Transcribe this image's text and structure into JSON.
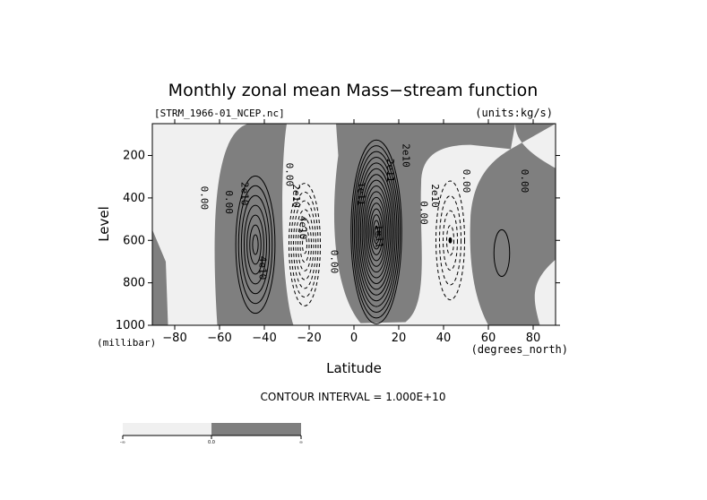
{
  "chart_data": {
    "type": "contour",
    "title": "Monthly zonal mean Mass−stream function",
    "file_label": "[STRM_1966-01_NCEP.nc]",
    "units_label": "(units:kg/s)",
    "xlabel": "Latitude",
    "ylabel": "Level",
    "x_units": "(degrees_north)",
    "y_units": "(millibar)",
    "xlim": [
      -90,
      90
    ],
    "ylim": [
      1000,
      50
    ],
    "x_ticks": [
      -80,
      -60,
      -40,
      -20,
      0,
      20,
      40,
      60,
      80
    ],
    "x_tick_labels": [
      "−80",
      "−60",
      "−40",
      "−20",
      "0",
      "20",
      "40",
      "60",
      "80"
    ],
    "y_ticks": [
      200,
      400,
      600,
      800,
      1000
    ],
    "y_tick_labels": [
      "200",
      "400",
      "600",
      "800",
      "1000"
    ],
    "contour_interval_label": "CONTOUR INTERVAL = 1.000E+10",
    "contour_interval": 10000000000.0,
    "shading": "values > 0 shaded dark gray, values < 0 light gray",
    "colors": {
      "positive": "#7f7f7f",
      "negative": "#f0f0f0",
      "lines": "#000000"
    },
    "colorbar": {
      "labels": [
        "-∞",
        "0.0",
        "∞"
      ],
      "colors": [
        "#f0f0f0",
        "#7f7f7f"
      ]
    },
    "cells": [
      {
        "name": "southern-positive-cell",
        "sign": "positive",
        "center": [
          -44,
          620
        ],
        "half_width": [
          10,
          370
        ],
        "peak": 70000000000.0,
        "outer": [
          -58,
          200
        ]
      },
      {
        "name": "southern-negative-cell",
        "sign": "negative",
        "center": [
          -22,
          620
        ],
        "half_width": [
          8,
          330
        ],
        "peak": -70000000000.0
      },
      {
        "name": "tropical-positive-cell",
        "sign": "positive",
        "center": [
          10,
          560
        ],
        "half_width": [
          12,
          460
        ],
        "peak": 200000000000.0
      },
      {
        "name": "northern-negative-cell",
        "sign": "negative",
        "center": [
          43,
          600
        ],
        "half_width": [
          8,
          350
        ],
        "peak": -40000000000.0
      },
      {
        "name": "polar-positive-cell",
        "sign": "positive",
        "center": [
          66,
          660
        ],
        "half_width": [
          7,
          220
        ],
        "peak": 10000000000.0
      }
    ],
    "contour_labels": [
      {
        "text": "0.00",
        "lat": -67,
        "p": 400
      },
      {
        "text": "0.00",
        "lat": -56,
        "p": 420
      },
      {
        "text": "2e10",
        "lat": -49,
        "p": 380
      },
      {
        "text": "4e10",
        "lat": -41,
        "p": 730
      },
      {
        "text": "0.00",
        "lat": -29,
        "p": 290
      },
      {
        "text": "2e10",
        "lat": -26,
        "p": 390
      },
      {
        "text": "4e10",
        "lat": -23,
        "p": 540
      },
      {
        "text": "0.00",
        "lat": -9,
        "p": 700
      },
      {
        "text": "1e11",
        "lat": 3,
        "p": 380
      },
      {
        "text": "1e11",
        "lat": 11,
        "p": 580
      },
      {
        "text": "2e11",
        "lat": 16,
        "p": 270
      },
      {
        "text": "2e10",
        "lat": 23,
        "p": 200
      },
      {
        "text": "0.00",
        "lat": 31,
        "p": 470
      },
      {
        "text": "2e10",
        "lat": 36,
        "p": 390
      },
      {
        "text": "0.00",
        "lat": 50,
        "p": 320
      },
      {
        "text": "0.00",
        "lat": 76,
        "p": 320
      }
    ]
  }
}
